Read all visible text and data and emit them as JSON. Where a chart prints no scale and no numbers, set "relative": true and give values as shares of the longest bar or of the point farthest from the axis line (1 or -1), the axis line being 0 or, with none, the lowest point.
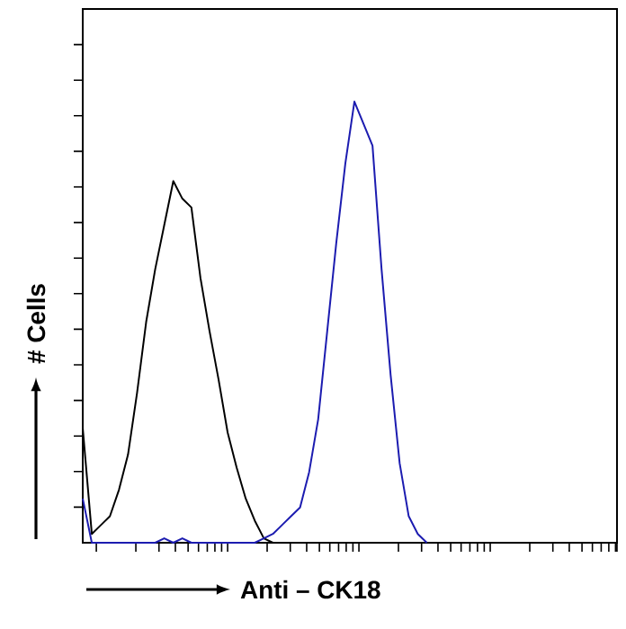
{
  "chart_data": {
    "type": "line",
    "relative": true,
    "xlabel": "Anti – CK18",
    "ylabel": "# Cells",
    "tick_labels": false,
    "marker": "none",
    "line_style": "solid",
    "categories": [
      null,
      null,
      null,
      null,
      null,
      null,
      null,
      null,
      null,
      null,
      null,
      null,
      null,
      null,
      null,
      null,
      null,
      null,
      null,
      null,
      null,
      null,
      null,
      null,
      null,
      null,
      null,
      null,
      null,
      null,
      null,
      null,
      null,
      null,
      null,
      null,
      null,
      null,
      null,
      null,
      null,
      null,
      null,
      null,
      null,
      null,
      null,
      null,
      null,
      null,
      null,
      null,
      null,
      null,
      null,
      null,
      null,
      null,
      null,
      null
    ],
    "series": [
      {
        "color": "#000000",
        "values": [
          0.26,
          0.02,
          0.04,
          0.06,
          0.12,
          0.2,
          0.34,
          0.5,
          0.62,
          0.72,
          0.82,
          0.78,
          0.76,
          0.6,
          0.48,
          0.37,
          0.25,
          0.17,
          0.1,
          0.05,
          0.01,
          0,
          null,
          null,
          null,
          null,
          null,
          null,
          null,
          null,
          null,
          null,
          null,
          null,
          null,
          null,
          null,
          null,
          null,
          null,
          null,
          null,
          null,
          null,
          null,
          null,
          null,
          null,
          null,
          null,
          null,
          null,
          null,
          null,
          null,
          null,
          null,
          null,
          null,
          null
        ]
      },
      {
        "color": "#1c1cb0",
        "values": [
          0.1,
          0,
          0,
          0,
          0,
          0,
          0,
          0,
          0,
          0.01,
          0,
          0.01,
          0,
          0,
          0,
          0,
          0,
          0,
          0,
          0,
          0.01,
          0.02,
          0.04,
          0.06,
          0.08,
          0.16,
          0.28,
          0.48,
          0.68,
          0.86,
          1.0,
          0.95,
          0.9,
          0.62,
          0.38,
          0.18,
          0.06,
          0.02,
          0,
          null,
          null,
          null,
          null,
          null,
          null,
          null,
          null,
          null,
          null,
          null,
          null,
          null,
          null,
          null,
          null,
          null,
          null,
          null,
          null,
          null
        ]
      }
    ]
  }
}
